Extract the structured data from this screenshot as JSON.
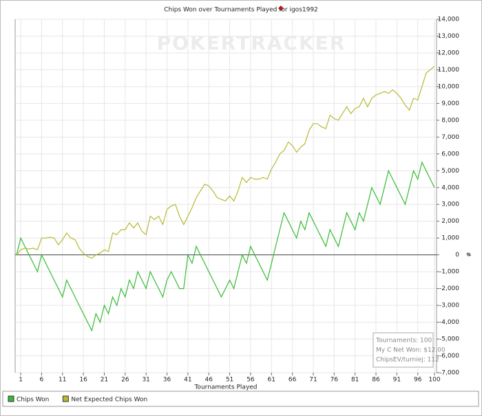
{
  "chart_data": {
    "type": "line",
    "title": "Chips Won over Tournaments Played for igos1992",
    "watermark": "POKERTRACKER",
    "x_label": "Tournaments Played",
    "y_label": "#",
    "x": [
      0,
      1,
      2,
      3,
      4,
      5,
      6,
      7,
      8,
      9,
      10,
      11,
      12,
      13,
      14,
      15,
      16,
      17,
      18,
      19,
      20,
      21,
      22,
      23,
      24,
      25,
      26,
      27,
      28,
      29,
      30,
      31,
      32,
      33,
      34,
      35,
      36,
      37,
      38,
      39,
      40,
      41,
      42,
      43,
      44,
      45,
      46,
      47,
      48,
      49,
      50,
      51,
      52,
      53,
      54,
      55,
      56,
      57,
      58,
      59,
      60,
      61,
      62,
      63,
      64,
      65,
      66,
      67,
      68,
      69,
      70,
      71,
      72,
      73,
      74,
      75,
      76,
      77,
      78,
      79,
      80,
      81,
      82,
      83,
      84,
      85,
      86,
      87,
      88,
      89,
      90,
      91,
      92,
      93,
      94,
      95,
      96,
      97,
      98,
      99,
      100
    ],
    "series": [
      {
        "name": "Chips Won",
        "color": "#33bb33",
        "values": [
          0,
          1000,
          500,
          0,
          -500,
          -1000,
          0,
          -500,
          -1000,
          -1500,
          -2000,
          -2500,
          -1500,
          -2000,
          -2500,
          -3000,
          -3500,
          -4000,
          -4500,
          -3500,
          -4000,
          -3000,
          -3500,
          -2500,
          -3000,
          -2000,
          -2500,
          -1500,
          -2000,
          -1000,
          -1500,
          -2000,
          -1000,
          -1500,
          -2000,
          -2500,
          -1500,
          -1000,
          -1500,
          -2000,
          -2000,
          0,
          -500,
          500,
          0,
          -500,
          -1000,
          -1500,
          -2000,
          -2500,
          -2000,
          -1500,
          -2000,
          -1000,
          0,
          -500,
          500,
          0,
          -500,
          -1000,
          -1500,
          -500,
          500,
          1500,
          2500,
          2000,
          1500,
          1000,
          2000,
          1500,
          2500,
          2000,
          1500,
          1000,
          500,
          1500,
          1000,
          500,
          1500,
          2500,
          2000,
          1500,
          2500,
          2000,
          3000,
          4000,
          3500,
          3000,
          4000,
          5000,
          4500,
          4000,
          3500,
          3000,
          4000,
          5000,
          4500,
          5500,
          5000,
          4500,
          4000
        ]
      },
      {
        "name": "Net Expected Chips Won",
        "color": "#b8b832",
        "values": [
          0,
          300,
          400,
          350,
          400,
          300,
          1000,
          1000,
          1050,
          1000,
          600,
          900,
          1300,
          1000,
          900,
          400,
          100,
          -100,
          -200,
          0,
          100,
          300,
          200,
          1300,
          1200,
          1500,
          1500,
          1900,
          1600,
          1900,
          1400,
          1200,
          2300,
          2100,
          2300,
          1800,
          2700,
          2900,
          3000,
          2300,
          1800,
          2300,
          2800,
          3400,
          3800,
          4200,
          4100,
          3800,
          3400,
          3300,
          3200,
          3500,
          3200,
          3800,
          4600,
          4300,
          4600,
          4500,
          4500,
          4600,
          4500,
          5100,
          5500,
          6000,
          6200,
          6700,
          6500,
          6100,
          6400,
          6600,
          7400,
          7800,
          7800,
          7600,
          7500,
          8300,
          8100,
          8000,
          8400,
          8800,
          8400,
          8700,
          8800,
          9300,
          8800,
          9300,
          9500,
          9600,
          9700,
          9600,
          9800,
          9600,
          9300,
          8900,
          8600,
          9300,
          9200,
          10000,
          10800,
          11000,
          11200
        ]
      }
    ],
    "xlim": [
      0,
      100
    ],
    "xticks": [
      1,
      6,
      11,
      16,
      21,
      26,
      31,
      36,
      41,
      46,
      51,
      56,
      61,
      66,
      71,
      76,
      81,
      86,
      91,
      96,
      100
    ],
    "ylim": [
      -7000,
      14000
    ],
    "yticks": [
      {
        "value": -7000,
        "label": "-7,000"
      },
      {
        "value": -6000,
        "label": "-6,000"
      },
      {
        "value": -5000,
        "label": "-5,000"
      },
      {
        "value": -4000,
        "label": "-4,000"
      },
      {
        "value": -3000,
        "label": "-3,000"
      },
      {
        "value": -2000,
        "label": "-2,000"
      },
      {
        "value": -1000,
        "label": "-1,000"
      },
      0,
      {
        "value": 1000,
        "label": "1,000"
      },
      {
        "value": 2000,
        "label": "2,000"
      },
      {
        "value": 3000,
        "label": "3,000"
      },
      {
        "value": 4000,
        "label": "4,000"
      },
      {
        "value": 5000,
        "label": "5,000"
      },
      {
        "value": 6000,
        "label": "6,000"
      },
      {
        "value": 7000,
        "label": "7,000"
      },
      {
        "value": 8000,
        "label": "8,000"
      },
      {
        "value": 9000,
        "label": "9,000"
      },
      {
        "value": 10000,
        "label": "10,000"
      },
      {
        "value": 11000,
        "label": "11,000"
      },
      {
        "value": 12000,
        "label": "12,000"
      },
      {
        "value": 13000,
        "label": "13,000"
      },
      {
        "value": 14000,
        "label": "14,000"
      }
    ],
    "grid": true,
    "info": [
      "Tournaments: 100",
      "My C Net Won: $12.00",
      "ChipsEV/turniej: 112"
    ]
  }
}
